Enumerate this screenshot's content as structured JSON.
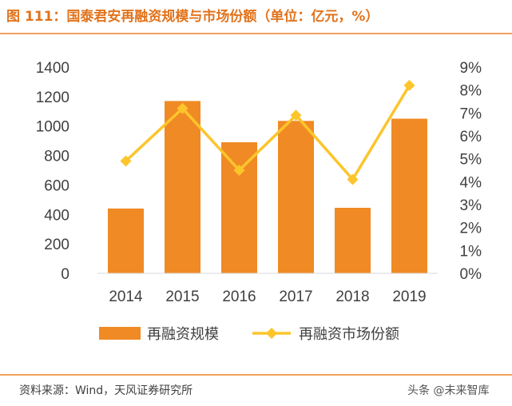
{
  "header": {
    "title": "图 111：国泰君安再融资规模与市场份额（单位：亿元，%）"
  },
  "footer": {
    "source": "资料来源：Wind，天风证券研究所",
    "watermark": "头条 @未来智库"
  },
  "colors": {
    "bar": "#f08a24",
    "line": "#fcc52c",
    "title": "#e2731c",
    "rule": "#f0a25c",
    "text": "#404040"
  },
  "chart_data": {
    "type": "bar+line",
    "categories": [
      "2014",
      "2015",
      "2016",
      "2017",
      "2018",
      "2019"
    ],
    "series": [
      {
        "name": "再融资规模",
        "type": "bar",
        "axis": "left",
        "values": [
          440,
          1170,
          890,
          1035,
          445,
          1050
        ]
      },
      {
        "name": "再融资市场份额",
        "type": "line",
        "axis": "right",
        "values": [
          4.9,
          7.2,
          4.5,
          6.9,
          4.1,
          8.2
        ]
      }
    ],
    "y_left": {
      "min": 0,
      "max": 1400,
      "ticks": [
        "0",
        "200",
        "400",
        "600",
        "800",
        "1000",
        "1200",
        "1400"
      ]
    },
    "y_right": {
      "min": 0,
      "max": 9,
      "ticks": [
        "0%",
        "1%",
        "2%",
        "3%",
        "4%",
        "5%",
        "6%",
        "7%",
        "8%",
        "9%"
      ]
    },
    "legend_position": "bottom",
    "grid": false
  }
}
